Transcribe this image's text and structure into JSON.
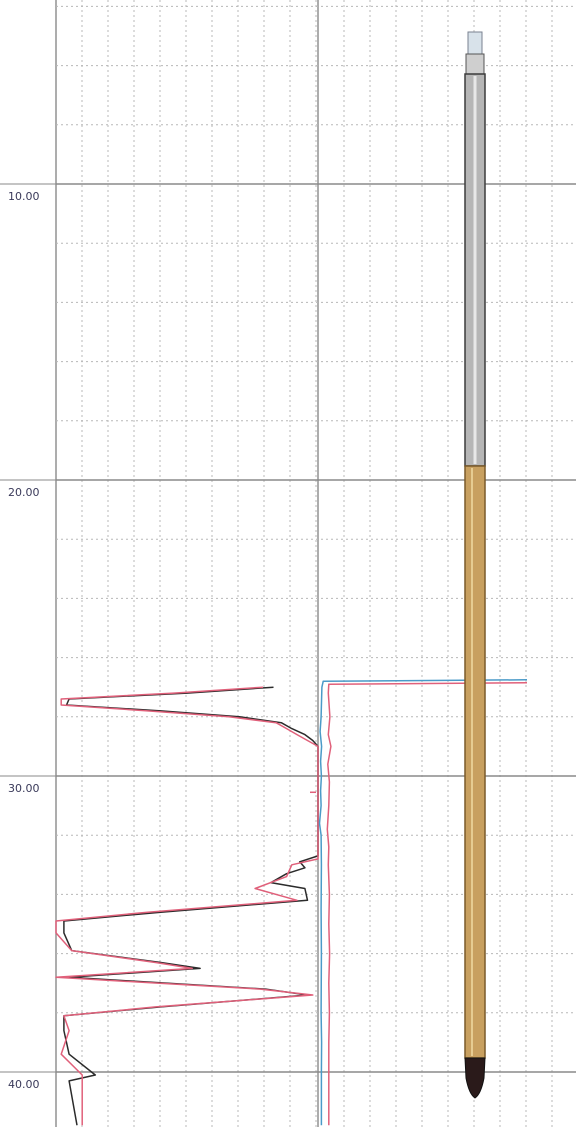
{
  "chart_data": {
    "type": "line",
    "title": "",
    "xlabel": "",
    "ylabel": "",
    "y_axis": {
      "orientation": "depth-increasing-downward",
      "ylim": [
        4.0,
        41.8
      ],
      "tick_labels": [
        "10.00",
        "20.00",
        "30.00",
        "40.00"
      ],
      "tick_values": [
        10,
        20,
        30,
        40
      ],
      "minor_grid_step": 2
    },
    "grid": true,
    "colors": {
      "major_grid": "#8a8a8a",
      "minor_grid": "#b8b8b8",
      "black_trace": "#2b2b2b",
      "red_trace": "#e0607a",
      "blue_trace": "#4a9ac8",
      "probe_metal": "#9a9a9a",
      "probe_sleeve": "#c8a060",
      "probe_tip": "#2a1a1a"
    },
    "series": [
      {
        "color": "#2b2b2b",
        "points": [
          [
            27.0,
            0.83
          ],
          [
            27.2,
            0.5
          ],
          [
            27.4,
            0.05
          ],
          [
            27.6,
            0.04
          ],
          [
            27.8,
            0.4
          ],
          [
            28.0,
            0.7
          ],
          [
            28.2,
            0.86
          ],
          [
            28.4,
            0.9
          ],
          [
            28.6,
            0.95
          ],
          [
            28.8,
            0.98
          ],
          [
            29.0,
            1.0
          ],
          [
            32.7,
            1.0
          ],
          [
            32.9,
            0.93
          ],
          [
            33.1,
            0.95
          ],
          [
            33.3,
            0.88
          ],
          [
            33.6,
            0.82
          ],
          [
            33.8,
            0.95
          ],
          [
            34.2,
            0.96
          ],
          [
            34.6,
            0.4
          ],
          [
            34.9,
            0.03
          ],
          [
            35.3,
            0.03
          ],
          [
            35.9,
            0.06
          ],
          [
            36.3,
            0.4
          ],
          [
            36.5,
            0.55
          ],
          [
            36.8,
            0.05
          ],
          [
            37.2,
            0.8
          ],
          [
            37.4,
            0.96
          ],
          [
            37.8,
            0.4
          ],
          [
            38.1,
            0.03
          ],
          [
            38.6,
            0.03
          ],
          [
            39.4,
            0.05
          ],
          [
            40.1,
            0.15
          ],
          [
            40.3,
            0.05
          ],
          [
            41.8,
            0.08
          ]
        ]
      },
      {
        "color": "#e0607a",
        "points": [
          [
            27.0,
            0.79
          ],
          [
            27.2,
            0.45
          ],
          [
            27.4,
            0.02
          ],
          [
            27.6,
            0.02
          ],
          [
            27.8,
            0.35
          ],
          [
            28.0,
            0.66
          ],
          [
            28.2,
            0.84
          ],
          [
            28.4,
            0.88
          ],
          [
            28.6,
            0.92
          ],
          [
            28.8,
            0.96
          ],
          [
            29.0,
            1.0
          ],
          [
            32.8,
            1.0
          ],
          [
            33.0,
            0.9
          ],
          [
            33.4,
            0.88
          ],
          [
            33.8,
            0.76
          ],
          [
            34.2,
            0.92
          ],
          [
            34.6,
            0.35
          ],
          [
            34.9,
            0.0
          ],
          [
            35.3,
            0.0
          ],
          [
            35.9,
            0.06
          ],
          [
            36.3,
            0.38
          ],
          [
            36.5,
            0.52
          ],
          [
            36.8,
            0.0
          ],
          [
            37.2,
            0.78
          ],
          [
            37.4,
            0.98
          ],
          [
            37.8,
            0.38
          ],
          [
            38.1,
            0.03
          ],
          [
            38.6,
            0.05
          ],
          [
            39.4,
            0.02
          ],
          [
            40.1,
            0.1
          ],
          [
            41.8,
            0.1
          ]
        ]
      },
      {
        "color": "#4a9ac8",
        "points": [
          [
            26.75,
            8.1
          ],
          [
            26.8,
            0.2
          ],
          [
            27.0,
            0.15
          ],
          [
            28.0,
            0.12
          ],
          [
            28.5,
            0.08
          ],
          [
            29.0,
            0.14
          ],
          [
            29.5,
            0.1
          ],
          [
            30.0,
            0.13
          ],
          [
            30.5,
            0.1
          ],
          [
            31.0,
            0.12
          ],
          [
            31.6,
            0.06
          ],
          [
            32.0,
            0.12
          ],
          [
            33.0,
            0.13
          ],
          [
            34.5,
            0.12
          ],
          [
            36.0,
            0.13
          ],
          [
            38.0,
            0.12
          ],
          [
            39.0,
            0.14
          ],
          [
            40.0,
            0.13
          ],
          [
            41.8,
            0.13
          ]
        ]
      },
      {
        "color": "#e0607a",
        "points": [
          [
            26.85,
            8.1
          ],
          [
            26.9,
            0.42
          ],
          [
            27.2,
            0.4
          ],
          [
            28.0,
            0.46
          ],
          [
            28.6,
            0.4
          ],
          [
            29.0,
            0.5
          ],
          [
            29.6,
            0.38
          ],
          [
            30.2,
            0.44
          ],
          [
            31.0,
            0.42
          ],
          [
            31.8,
            0.36
          ],
          [
            32.4,
            0.42
          ],
          [
            33.0,
            0.4
          ],
          [
            34.0,
            0.44
          ],
          [
            35.0,
            0.42
          ],
          [
            36.0,
            0.45
          ],
          [
            37.0,
            0.42
          ],
          [
            38.0,
            0.44
          ],
          [
            39.0,
            0.42
          ],
          [
            40.0,
            0.42
          ],
          [
            41.8,
            0.42
          ]
        ]
      }
    ]
  }
}
